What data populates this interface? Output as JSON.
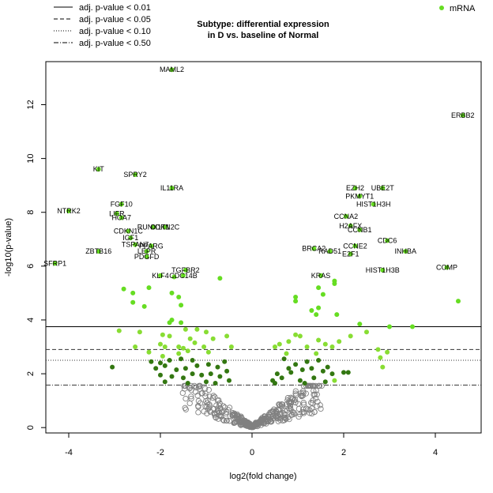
{
  "chart_data": {
    "type": "scatter",
    "title_lines": [
      "Subtype: differential expression",
      "in D vs. baseline of Normal"
    ],
    "xlabel": "log2(fold change)",
    "ylabel": "-log10(p-value)",
    "xlim": [
      -4.5,
      5.0
    ],
    "ylim": [
      -0.2,
      13.6
    ],
    "x_ticks": [
      -4,
      -2,
      0,
      2,
      4
    ],
    "y_ticks": [
      0,
      2,
      4,
      6,
      8,
      10,
      12
    ],
    "grid": false,
    "threshold_lines": [
      {
        "label": "adj. p-value < 0.01",
        "y": 3.75,
        "style": "solid"
      },
      {
        "label": "adj. p-value < 0.05",
        "y": 2.9,
        "style": "dashed"
      },
      {
        "label": "adj. p-value < 0.10",
        "y": 2.5,
        "style": "dotted"
      },
      {
        "label": "adj. p-value < 0.50",
        "y": 1.58,
        "style": "dotdash"
      }
    ],
    "series_legend": {
      "label": "mRNA",
      "color": "#66dd22",
      "position": "top-right"
    },
    "colors": {
      "bright": "#66dd22",
      "light": "#88dd33",
      "dark": "#337711",
      "ns": "#808080"
    },
    "labeled_genes": [
      {
        "name": "MAML2",
        "x": -1.75,
        "y": 13.3
      },
      {
        "name": "ERBB2",
        "x": 4.6,
        "y": 11.6
      },
      {
        "name": "KIT",
        "x": -3.35,
        "y": 9.6
      },
      {
        "name": "SPRY2",
        "x": -2.55,
        "y": 9.4
      },
      {
        "name": "IL11RA",
        "x": -1.75,
        "y": 8.9
      },
      {
        "name": "EZH2",
        "x": 2.25,
        "y": 8.9
      },
      {
        "name": "UBE2T",
        "x": 2.85,
        "y": 8.9
      },
      {
        "name": "PKMYT1",
        "x": 2.35,
        "y": 8.6
      },
      {
        "name": "HIST1H3H",
        "x": 2.65,
        "y": 8.3
      },
      {
        "name": "FGF10",
        "x": -2.85,
        "y": 8.3
      },
      {
        "name": "NTRK2",
        "x": -4.0,
        "y": 8.05
      },
      {
        "name": "LIFR",
        "x": -2.95,
        "y": 7.95
      },
      {
        "name": "HOA7",
        "x": -2.85,
        "y": 7.8
      },
      {
        "name": "CCNA2",
        "x": 2.05,
        "y": 7.85
      },
      {
        "name": "RUNX1T1",
        "x": -2.15,
        "y": 7.45
      },
      {
        "name": "CDKN2C",
        "x": -1.9,
        "y": 7.45
      },
      {
        "name": "H2AFX",
        "x": 2.15,
        "y": 7.5
      },
      {
        "name": "CCNB1",
        "x": 2.35,
        "y": 7.35
      },
      {
        "name": "CDKN1C",
        "x": -2.7,
        "y": 7.3
      },
      {
        "name": "IGF1",
        "x": -2.65,
        "y": 7.05
      },
      {
        "name": "CDC6",
        "x": 2.95,
        "y": 6.95
      },
      {
        "name": "TSPAN7",
        "x": -2.55,
        "y": 6.8
      },
      {
        "name": "PPARG",
        "x": -2.2,
        "y": 6.75
      },
      {
        "name": "BRCA2",
        "x": 1.35,
        "y": 6.65
      },
      {
        "name": "CCNE2",
        "x": 2.25,
        "y": 6.75
      },
      {
        "name": "LEPR",
        "x": -2.3,
        "y": 6.55
      },
      {
        "name": "INHBA",
        "x": 3.35,
        "y": 6.55
      },
      {
        "name": "ZBTB16",
        "x": -3.35,
        "y": 6.55
      },
      {
        "name": "RAD51",
        "x": 1.7,
        "y": 6.55
      },
      {
        "name": "E2F1",
        "x": 2.15,
        "y": 6.45
      },
      {
        "name": "PDGFD",
        "x": -2.3,
        "y": 6.35
      },
      {
        "name": "SFRP1",
        "x": -4.3,
        "y": 6.1
      },
      {
        "name": "COMP",
        "x": 4.25,
        "y": 5.95
      },
      {
        "name": "HIST1H3B",
        "x": 2.85,
        "y": 5.85
      },
      {
        "name": "TGFBR2",
        "x": -1.45,
        "y": 5.85
      },
      {
        "name": "KLF4",
        "x": -2.0,
        "y": 5.65
      },
      {
        "name": "CDC14B",
        "x": -1.5,
        "y": 5.65
      },
      {
        "name": "KRAS",
        "x": 1.5,
        "y": 5.65
      }
    ],
    "unlabeled_significant": [
      {
        "x": -2.8,
        "y": 5.15
      },
      {
        "x": -2.6,
        "y": 5.0
      },
      {
        "x": -2.25,
        "y": 5.2
      },
      {
        "x": -1.75,
        "y": 5.0
      },
      {
        "x": -1.7,
        "y": 5.6
      },
      {
        "x": -0.7,
        "y": 5.55
      },
      {
        "x": -2.6,
        "y": 4.65
      },
      {
        "x": -2.35,
        "y": 4.5
      },
      {
        "x": -1.6,
        "y": 4.85
      },
      {
        "x": -1.55,
        "y": 4.55
      },
      {
        "x": 0.95,
        "y": 4.85
      },
      {
        "x": 0.95,
        "y": 4.7
      },
      {
        "x": 1.45,
        "y": 5.2
      },
      {
        "x": 1.55,
        "y": 4.95
      },
      {
        "x": 1.8,
        "y": 5.45
      },
      {
        "x": 1.8,
        "y": 5.35
      },
      {
        "x": 1.3,
        "y": 4.35
      },
      {
        "x": 1.45,
        "y": 4.45
      },
      {
        "x": 1.4,
        "y": 4.2
      },
      {
        "x": 1.85,
        "y": 4.2
      },
      {
        "x": 4.5,
        "y": 4.7
      },
      {
        "x": 2.35,
        "y": 3.85
      },
      {
        "x": 3.0,
        "y": 3.75
      },
      {
        "x": 3.5,
        "y": 3.75
      },
      {
        "x": -1.8,
        "y": 3.9
      },
      {
        "x": -1.75,
        "y": 4.0
      },
      {
        "x": -1.55,
        "y": 3.9
      }
    ],
    "unlabeled_light": [
      {
        "x": -2.9,
        "y": 3.6
      },
      {
        "x": -2.45,
        "y": 3.55
      },
      {
        "x": -1.95,
        "y": 3.45
      },
      {
        "x": -1.8,
        "y": 3.4
      },
      {
        "x": -1.45,
        "y": 3.65
      },
      {
        "x": -1.2,
        "y": 3.65
      },
      {
        "x": -1.0,
        "y": 3.55
      },
      {
        "x": -2.55,
        "y": 3.0
      },
      {
        "x": -2.0,
        "y": 3.1
      },
      {
        "x": -1.9,
        "y": 3.0
      },
      {
        "x": -1.6,
        "y": 3.0
      },
      {
        "x": -1.5,
        "y": 2.95
      },
      {
        "x": -1.35,
        "y": 3.3
      },
      {
        "x": -1.25,
        "y": 3.15
      },
      {
        "x": -1.05,
        "y": 3.0
      },
      {
        "x": -0.85,
        "y": 3.3
      },
      {
        "x": -0.55,
        "y": 3.4
      },
      {
        "x": -0.45,
        "y": 3.0
      },
      {
        "x": -2.25,
        "y": 2.8
      },
      {
        "x": -1.95,
        "y": 2.65
      },
      {
        "x": -1.6,
        "y": 2.75
      },
      {
        "x": -1.4,
        "y": 2.85
      },
      {
        "x": -0.95,
        "y": 2.8
      },
      {
        "x": 0.5,
        "y": 3.0
      },
      {
        "x": 0.6,
        "y": 3.1
      },
      {
        "x": 0.8,
        "y": 3.2
      },
      {
        "x": 0.95,
        "y": 3.45
      },
      {
        "x": 1.05,
        "y": 3.4
      },
      {
        "x": 1.2,
        "y": 3.0
      },
      {
        "x": 1.45,
        "y": 3.25
      },
      {
        "x": 1.6,
        "y": 3.1
      },
      {
        "x": 1.75,
        "y": 3.0
      },
      {
        "x": 1.9,
        "y": 3.2
      },
      {
        "x": 2.15,
        "y": 3.4
      },
      {
        "x": 2.5,
        "y": 3.55
      },
      {
        "x": 0.75,
        "y": 2.75
      },
      {
        "x": 1.4,
        "y": 2.75
      },
      {
        "x": 2.75,
        "y": 2.9
      },
      {
        "x": 2.8,
        "y": 2.6
      },
      {
        "x": 2.95,
        "y": 2.8
      },
      {
        "x": 2.85,
        "y": 2.25
      },
      {
        "x": 1.8,
        "y": 1.75
      }
    ],
    "unlabeled_dark": [
      {
        "x": -3.05,
        "y": 2.25
      },
      {
        "x": -2.2,
        "y": 2.45
      },
      {
        "x": -2.0,
        "y": 2.4
      },
      {
        "x": -1.8,
        "y": 2.5
      },
      {
        "x": -1.55,
        "y": 2.55
      },
      {
        "x": -1.3,
        "y": 2.5
      },
      {
        "x": -0.6,
        "y": 2.45
      },
      {
        "x": -2.1,
        "y": 2.2
      },
      {
        "x": -1.9,
        "y": 2.3
      },
      {
        "x": -1.65,
        "y": 2.15
      },
      {
        "x": -1.45,
        "y": 2.2
      },
      {
        "x": -1.2,
        "y": 2.3
      },
      {
        "x": -0.95,
        "y": 2.35
      },
      {
        "x": -0.75,
        "y": 2.25
      },
      {
        "x": -0.55,
        "y": 2.1
      },
      {
        "x": -2.0,
        "y": 1.95
      },
      {
        "x": -1.75,
        "y": 1.9
      },
      {
        "x": -1.5,
        "y": 1.85
      },
      {
        "x": -1.3,
        "y": 2.0
      },
      {
        "x": -1.1,
        "y": 1.95
      },
      {
        "x": -0.9,
        "y": 2.0
      },
      {
        "x": -0.7,
        "y": 1.9
      },
      {
        "x": -0.5,
        "y": 1.75
      },
      {
        "x": -1.9,
        "y": 1.7
      },
      {
        "x": -1.4,
        "y": 1.65
      },
      {
        "x": -1.0,
        "y": 1.7
      },
      {
        "x": -0.8,
        "y": 1.65
      },
      {
        "x": 0.45,
        "y": 1.75
      },
      {
        "x": 0.55,
        "y": 2.0
      },
      {
        "x": 0.65,
        "y": 1.85
      },
      {
        "x": 0.8,
        "y": 2.2
      },
      {
        "x": 0.85,
        "y": 2.05
      },
      {
        "x": 0.95,
        "y": 2.35
      },
      {
        "x": 1.1,
        "y": 2.15
      },
      {
        "x": 1.2,
        "y": 2.45
      },
      {
        "x": 1.3,
        "y": 2.2
      },
      {
        "x": 1.45,
        "y": 2.5
      },
      {
        "x": 1.55,
        "y": 2.1
      },
      {
        "x": 1.65,
        "y": 2.25
      },
      {
        "x": 0.7,
        "y": 2.55
      },
      {
        "x": 1.05,
        "y": 1.75
      },
      {
        "x": 1.35,
        "y": 1.85
      },
      {
        "x": 1.15,
        "y": 1.65
      },
      {
        "x": 1.6,
        "y": 1.7
      },
      {
        "x": 1.75,
        "y": 2.0
      },
      {
        "x": 2.0,
        "y": 2.05
      },
      {
        "x": 2.1,
        "y": 2.05
      },
      {
        "x": 0.5,
        "y": 1.65
      }
    ]
  }
}
